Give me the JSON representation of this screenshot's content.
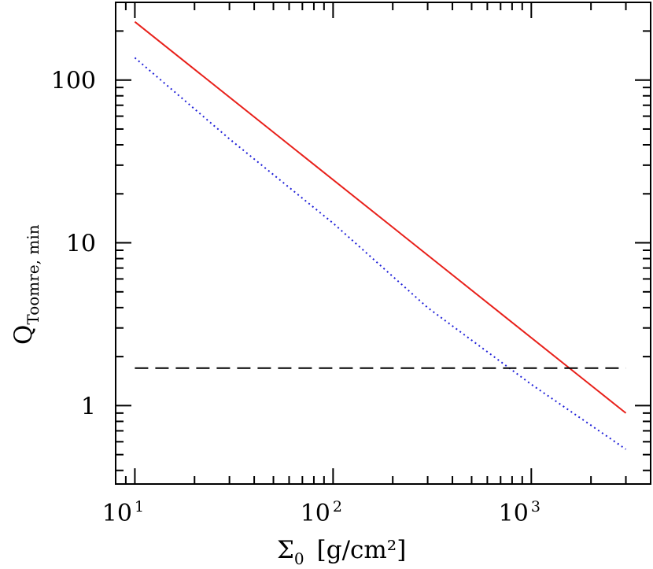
{
  "chart_data": {
    "type": "line",
    "title": "",
    "xlabel": {
      "symbol": "Σ",
      "subscript": "0",
      "units": "[g/cm²]"
    },
    "ylabel": {
      "symbol": "Q",
      "subscript": "Toomre, min"
    },
    "xscale": "log",
    "yscale": "log",
    "xlim": [
      8,
      4000
    ],
    "ylim": [
      0.33,
      300
    ],
    "x_tick_labels": [
      {
        "value": 10,
        "base": "10",
        "exp": "1"
      },
      {
        "value": 100,
        "base": "10",
        "exp": "2"
      },
      {
        "value": 1000,
        "base": "10",
        "exp": "3"
      }
    ],
    "y_tick_labels": [
      {
        "value": 1,
        "label": "1"
      },
      {
        "value": 10,
        "label": "10"
      },
      {
        "value": 100,
        "label": "100"
      }
    ],
    "grid": false,
    "series": [
      {
        "style": "solid",
        "color": "#e8201a",
        "x": [
          10,
          3000
        ],
        "y": [
          228,
          0.9
        ]
      },
      {
        "style": "dotted",
        "color": "#1f1fd8",
        "x": [
          10,
          30,
          100,
          300,
          1000,
          3000
        ],
        "y": [
          137,
          43.5,
          13.2,
          4.0,
          1.35,
          0.54
        ]
      },
      {
        "style": "dashed",
        "color": "#000000",
        "x": [
          10,
          3000
        ],
        "y": [
          1.7,
          1.7
        ]
      }
    ]
  }
}
